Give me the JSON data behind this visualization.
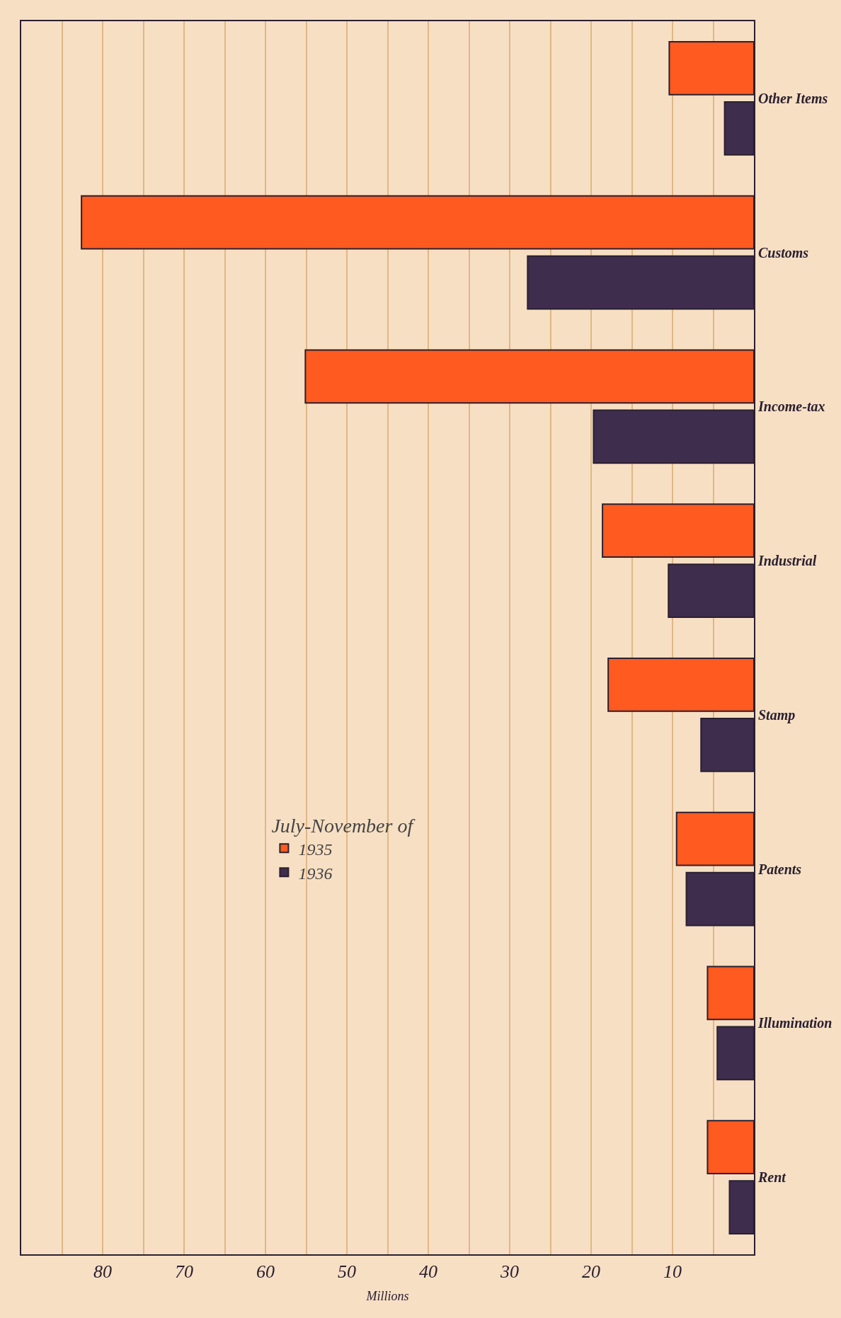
{
  "chart_data": {
    "type": "bar",
    "orientation": "horizontal",
    "xlabel": "Millions",
    "legend_title": "July-November of",
    "categories": [
      "Other Items",
      "Customs",
      "Income-tax",
      "Industrial",
      "Stamp",
      "Patents",
      "Illumination",
      "Rent"
    ],
    "series": [
      {
        "name": "1935",
        "color": "#ff5a1f",
        "values": [
          10.4,
          82.6,
          55.1,
          18.6,
          17.9,
          9.5,
          5.7,
          5.7
        ]
      },
      {
        "name": "1936",
        "color": "#3f2d4d",
        "values": [
          3.6,
          27.8,
          19.7,
          10.5,
          6.5,
          8.3,
          4.5,
          3.0
        ]
      }
    ],
    "xlim": [
      90,
      0
    ],
    "xticks": [
      {
        "value": 5,
        "label": null
      },
      10,
      {
        "value": 15,
        "label": null
      },
      20,
      {
        "value": 25,
        "label": null
      },
      30,
      {
        "value": 35,
        "label": null
      },
      40,
      {
        "value": 45,
        "label": null
      },
      50,
      {
        "value": 55,
        "label": null
      },
      60,
      {
        "value": 65,
        "label": null
      },
      70,
      {
        "value": 75,
        "label": null
      },
      80,
      {
        "value": 85,
        "label": null
      }
    ],
    "grid": "x",
    "legend": "left"
  }
}
